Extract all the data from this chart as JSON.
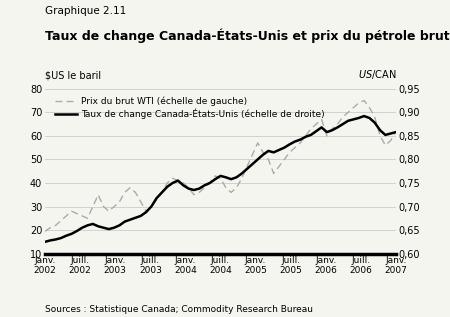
{
  "title_small": "Graphique 2.11",
  "title_large": "Taux de change Canada-États-Unis et prix du pétrole brut",
  "ylabel_left": "$US le baril",
  "ylabel_right": "$US/$CAN",
  "source": "Sources : Statistique Canada; Commodity Research Bureau",
  "ylim_left": [
    10,
    80
  ],
  "ylim_right": [
    0.6,
    0.95
  ],
  "yticks_left": [
    10,
    20,
    30,
    40,
    50,
    60,
    70,
    80
  ],
  "yticks_right": [
    0.6,
    0.65,
    0.7,
    0.75,
    0.8,
    0.85,
    0.9,
    0.95
  ],
  "legend_wti": "Prix du brut WTI (échelle de gauche)",
  "legend_fx": "Taux de change Canada-États-Unis (échelle de droite)",
  "xtick_labels": [
    "Janv.\n2002",
    "Juill.\n2002",
    "Janv.\n2003",
    "Juill.\n2003",
    "Janv.\n2004",
    "Juill.\n2004",
    "Janv.\n2005",
    "Juill.\n2005",
    "Janv.\n2006",
    "Juill.\n2006",
    "Janv.\n2007"
  ],
  "wti_color": "#aaaaaa",
  "fx_color": "#000000",
  "background_color": "#f5f5f0",
  "wti_data": [
    19.5,
    21,
    22,
    24,
    26,
    28,
    27,
    26,
    25,
    30,
    35,
    30,
    28,
    30,
    32,
    36,
    38,
    36,
    32,
    28,
    30,
    33,
    36,
    40,
    42,
    41,
    40,
    38,
    35,
    36,
    38,
    40,
    43,
    42,
    38,
    36,
    38,
    42,
    47,
    52,
    57,
    53,
    50,
    44,
    47,
    50,
    53,
    55,
    57,
    60,
    63,
    65,
    67,
    60,
    63,
    65,
    68,
    70,
    72,
    74,
    75,
    72,
    68,
    60,
    56,
    58,
    62
  ],
  "fx_data": [
    0.625,
    0.628,
    0.63,
    0.633,
    0.638,
    0.642,
    0.648,
    0.655,
    0.66,
    0.663,
    0.658,
    0.655,
    0.652,
    0.655,
    0.66,
    0.668,
    0.672,
    0.676,
    0.68,
    0.688,
    0.7,
    0.718,
    0.73,
    0.742,
    0.75,
    0.755,
    0.745,
    0.738,
    0.735,
    0.738,
    0.745,
    0.75,
    0.758,
    0.765,
    0.762,
    0.758,
    0.762,
    0.77,
    0.78,
    0.79,
    0.8,
    0.81,
    0.818,
    0.815,
    0.82,
    0.825,
    0.832,
    0.838,
    0.842,
    0.848,
    0.852,
    0.86,
    0.868,
    0.858,
    0.862,
    0.868,
    0.875,
    0.882,
    0.885,
    0.888,
    0.892,
    0.888,
    0.878,
    0.862,
    0.852,
    0.855,
    0.858
  ]
}
